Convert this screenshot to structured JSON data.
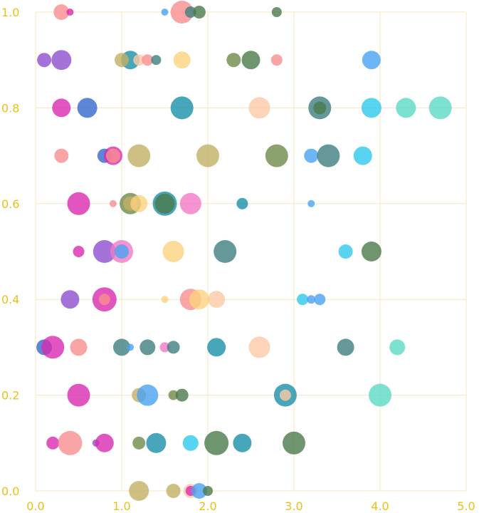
{
  "chart_data": {
    "type": "scatter",
    "title": "",
    "xlabel": "",
    "ylabel": "",
    "xlim": [
      0,
      5
    ],
    "ylim": [
      0,
      1
    ],
    "grid": true,
    "x_ticks": [
      "0.0",
      "1.0",
      "2.0",
      "3.0",
      "4.0",
      "5.0"
    ],
    "y_ticks": [
      "0.0",
      "0.2",
      "0.4",
      "0.6",
      "0.8",
      "1.0"
    ],
    "palette": {
      "salmon": "#f98f8f",
      "peach": "#fdc9a5",
      "gold": "#c2b064",
      "yellow": "#fdd27e",
      "pink": "#f279c4",
      "magenta": "#d92bb0",
      "purple": "#8d4fce",
      "blue": "#3468cc",
      "sky": "#4aa3f2",
      "cyan": "#2ec8ec",
      "teal": "#1990a8",
      "slate": "#3f7f7f",
      "green": "#4b7a4b",
      "olive": "#6e8a4a",
      "mint": "#5cd9c5"
    },
    "points": [
      {
        "x": 0.3,
        "y": 1.0,
        "size": 11,
        "color": "salmon"
      },
      {
        "x": 0.4,
        "y": 1.0,
        "size": 5,
        "color": "magenta"
      },
      {
        "x": 1.5,
        "y": 1.0,
        "size": 5,
        "color": "sky"
      },
      {
        "x": 1.7,
        "y": 1.0,
        "size": 16,
        "color": "salmon"
      },
      {
        "x": 1.8,
        "y": 1.0,
        "size": 8,
        "color": "slate"
      },
      {
        "x": 1.9,
        "y": 1.0,
        "size": 9,
        "color": "green"
      },
      {
        "x": 2.8,
        "y": 1.0,
        "size": 7,
        "color": "green"
      },
      {
        "x": 0.1,
        "y": 0.9,
        "size": 10,
        "color": "purple"
      },
      {
        "x": 0.3,
        "y": 0.9,
        "size": 14,
        "color": "purple"
      },
      {
        "x": 1.1,
        "y": 0.9,
        "size": 13,
        "color": "teal"
      },
      {
        "x": 1.0,
        "y": 0.9,
        "size": 10,
        "color": "gold"
      },
      {
        "x": 1.2,
        "y": 0.9,
        "size": 8,
        "color": "peach"
      },
      {
        "x": 1.3,
        "y": 0.9,
        "size": 8,
        "color": "salmon"
      },
      {
        "x": 1.4,
        "y": 0.9,
        "size": 7,
        "color": "slate"
      },
      {
        "x": 1.7,
        "y": 0.9,
        "size": 12,
        "color": "yellow"
      },
      {
        "x": 2.3,
        "y": 0.9,
        "size": 10,
        "color": "olive"
      },
      {
        "x": 2.5,
        "y": 0.9,
        "size": 13,
        "color": "green"
      },
      {
        "x": 2.8,
        "y": 0.9,
        "size": 8,
        "color": "salmon"
      },
      {
        "x": 3.9,
        "y": 0.9,
        "size": 13,
        "color": "sky"
      },
      {
        "x": 0.3,
        "y": 0.8,
        "size": 13,
        "color": "magenta"
      },
      {
        "x": 0.6,
        "y": 0.8,
        "size": 14,
        "color": "blue"
      },
      {
        "x": 1.7,
        "y": 0.8,
        "size": 16,
        "color": "teal"
      },
      {
        "x": 2.6,
        "y": 0.8,
        "size": 15,
        "color": "peach"
      },
      {
        "x": 3.3,
        "y": 0.8,
        "size": 16,
        "color": "slate"
      },
      {
        "x": 3.3,
        "y": 0.8,
        "size": 9,
        "color": "green"
      },
      {
        "x": 3.9,
        "y": 0.8,
        "size": 14,
        "color": "cyan"
      },
      {
        "x": 4.3,
        "y": 0.8,
        "size": 14,
        "color": "mint"
      },
      {
        "x": 4.7,
        "y": 0.8,
        "size": 16,
        "color": "mint"
      },
      {
        "x": 0.3,
        "y": 0.7,
        "size": 10,
        "color": "salmon"
      },
      {
        "x": 0.8,
        "y": 0.7,
        "size": 10,
        "color": "blue"
      },
      {
        "x": 0.9,
        "y": 0.7,
        "size": 13,
        "color": "magenta"
      },
      {
        "x": 0.9,
        "y": 0.7,
        "size": 10,
        "color": "salmon"
      },
      {
        "x": 1.2,
        "y": 0.7,
        "size": 16,
        "color": "gold"
      },
      {
        "x": 2.0,
        "y": 0.7,
        "size": 16,
        "color": "gold"
      },
      {
        "x": 2.8,
        "y": 0.7,
        "size": 16,
        "color": "olive"
      },
      {
        "x": 3.2,
        "y": 0.7,
        "size": 10,
        "color": "sky"
      },
      {
        "x": 3.4,
        "y": 0.7,
        "size": 16,
        "color": "slate"
      },
      {
        "x": 3.8,
        "y": 0.7,
        "size": 13,
        "color": "cyan"
      },
      {
        "x": 0.5,
        "y": 0.6,
        "size": 16,
        "color": "magenta"
      },
      {
        "x": 0.9,
        "y": 0.6,
        "size": 5,
        "color": "salmon"
      },
      {
        "x": 1.1,
        "y": 0.6,
        "size": 15,
        "color": "olive"
      },
      {
        "x": 1.1,
        "y": 0.6,
        "size": 10,
        "color": "gold"
      },
      {
        "x": 1.2,
        "y": 0.6,
        "size": 12,
        "color": "yellow"
      },
      {
        "x": 1.5,
        "y": 0.6,
        "size": 17,
        "color": "teal"
      },
      {
        "x": 1.5,
        "y": 0.6,
        "size": 14,
        "color": "green"
      },
      {
        "x": 1.8,
        "y": 0.6,
        "size": 15,
        "color": "pink"
      },
      {
        "x": 2.4,
        "y": 0.6,
        "size": 8,
        "color": "teal"
      },
      {
        "x": 3.2,
        "y": 0.6,
        "size": 5,
        "color": "sky"
      },
      {
        "x": 0.5,
        "y": 0.5,
        "size": 8,
        "color": "magenta"
      },
      {
        "x": 0.8,
        "y": 0.5,
        "size": 16,
        "color": "purple"
      },
      {
        "x": 1.0,
        "y": 0.5,
        "size": 16,
        "color": "pink"
      },
      {
        "x": 1.0,
        "y": 0.5,
        "size": 10,
        "color": "sky"
      },
      {
        "x": 1.6,
        "y": 0.5,
        "size": 15,
        "color": "yellow"
      },
      {
        "x": 2.2,
        "y": 0.5,
        "size": 16,
        "color": "slate"
      },
      {
        "x": 3.6,
        "y": 0.5,
        "size": 10,
        "color": "cyan"
      },
      {
        "x": 3.9,
        "y": 0.5,
        "size": 14,
        "color": "green"
      },
      {
        "x": 0.4,
        "y": 0.4,
        "size": 13,
        "color": "purple"
      },
      {
        "x": 0.8,
        "y": 0.4,
        "size": 17,
        "color": "magenta"
      },
      {
        "x": 0.8,
        "y": 0.4,
        "size": 8,
        "color": "salmon"
      },
      {
        "x": 1.5,
        "y": 0.4,
        "size": 5,
        "color": "yellow"
      },
      {
        "x": 1.8,
        "y": 0.4,
        "size": 15,
        "color": "salmon"
      },
      {
        "x": 1.9,
        "y": 0.4,
        "size": 14,
        "color": "yellow"
      },
      {
        "x": 2.1,
        "y": 0.4,
        "size": 12,
        "color": "peach"
      },
      {
        "x": 3.1,
        "y": 0.4,
        "size": 8,
        "color": "cyan"
      },
      {
        "x": 3.2,
        "y": 0.4,
        "size": 6,
        "color": "sky"
      },
      {
        "x": 3.3,
        "y": 0.4,
        "size": 8,
        "color": "sky"
      },
      {
        "x": 0.1,
        "y": 0.3,
        "size": 11,
        "color": "blue"
      },
      {
        "x": 0.2,
        "y": 0.3,
        "size": 16,
        "color": "magenta"
      },
      {
        "x": 0.5,
        "y": 0.3,
        "size": 12,
        "color": "salmon"
      },
      {
        "x": 1.0,
        "y": 0.3,
        "size": 12,
        "color": "slate"
      },
      {
        "x": 1.1,
        "y": 0.3,
        "size": 5,
        "color": "sky"
      },
      {
        "x": 1.3,
        "y": 0.3,
        "size": 11,
        "color": "slate"
      },
      {
        "x": 1.5,
        "y": 0.3,
        "size": 7,
        "color": "pink"
      },
      {
        "x": 1.6,
        "y": 0.3,
        "size": 9,
        "color": "slate"
      },
      {
        "x": 2.1,
        "y": 0.3,
        "size": 13,
        "color": "teal"
      },
      {
        "x": 2.6,
        "y": 0.3,
        "size": 15,
        "color": "peach"
      },
      {
        "x": 3.6,
        "y": 0.3,
        "size": 12,
        "color": "slate"
      },
      {
        "x": 4.2,
        "y": 0.3,
        "size": 11,
        "color": "mint"
      },
      {
        "x": 0.5,
        "y": 0.2,
        "size": 16,
        "color": "magenta"
      },
      {
        "x": 1.2,
        "y": 0.2,
        "size": 10,
        "color": "gold"
      },
      {
        "x": 1.3,
        "y": 0.2,
        "size": 15,
        "color": "sky"
      },
      {
        "x": 1.6,
        "y": 0.2,
        "size": 7,
        "color": "olive"
      },
      {
        "x": 1.7,
        "y": 0.2,
        "size": 9,
        "color": "green"
      },
      {
        "x": 2.9,
        "y": 0.2,
        "size": 16,
        "color": "teal"
      },
      {
        "x": 2.9,
        "y": 0.2,
        "size": 8,
        "color": "peach"
      },
      {
        "x": 4.0,
        "y": 0.2,
        "size": 16,
        "color": "mint"
      },
      {
        "x": 0.2,
        "y": 0.1,
        "size": 9,
        "color": "magenta"
      },
      {
        "x": 0.4,
        "y": 0.1,
        "size": 17,
        "color": "salmon"
      },
      {
        "x": 0.7,
        "y": 0.1,
        "size": 5,
        "color": "purple"
      },
      {
        "x": 0.8,
        "y": 0.1,
        "size": 13,
        "color": "magenta"
      },
      {
        "x": 1.2,
        "y": 0.1,
        "size": 9,
        "color": "olive"
      },
      {
        "x": 1.4,
        "y": 0.1,
        "size": 14,
        "color": "teal"
      },
      {
        "x": 1.8,
        "y": 0.1,
        "size": 11,
        "color": "cyan"
      },
      {
        "x": 2.1,
        "y": 0.1,
        "size": 17,
        "color": "green"
      },
      {
        "x": 2.4,
        "y": 0.1,
        "size": 13,
        "color": "teal"
      },
      {
        "x": 3.0,
        "y": 0.1,
        "size": 16,
        "color": "green"
      },
      {
        "x": 1.2,
        "y": 0.0,
        "size": 14,
        "color": "gold"
      },
      {
        "x": 1.6,
        "y": 0.0,
        "size": 10,
        "color": "gold"
      },
      {
        "x": 1.8,
        "y": 0.0,
        "size": 10,
        "color": "peach"
      },
      {
        "x": 1.8,
        "y": 0.0,
        "size": 7,
        "color": "magenta"
      },
      {
        "x": 1.9,
        "y": 0.0,
        "size": 11,
        "color": "sky"
      },
      {
        "x": 2.0,
        "y": 0.0,
        "size": 7,
        "color": "green"
      }
    ]
  }
}
